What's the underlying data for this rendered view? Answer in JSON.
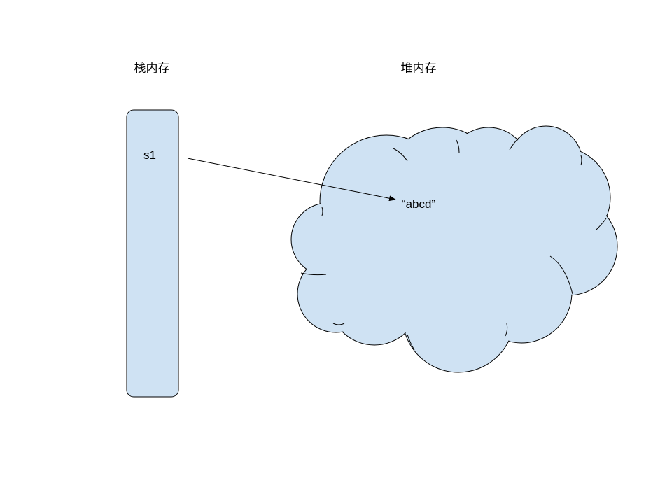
{
  "labels": {
    "stack_title": "栈内存",
    "heap_title": "堆内存",
    "variable": "s1",
    "value": "“abcd”"
  },
  "colors": {
    "fill": "#cfe2f3",
    "stroke": "#000000",
    "background": "#ffffff"
  }
}
